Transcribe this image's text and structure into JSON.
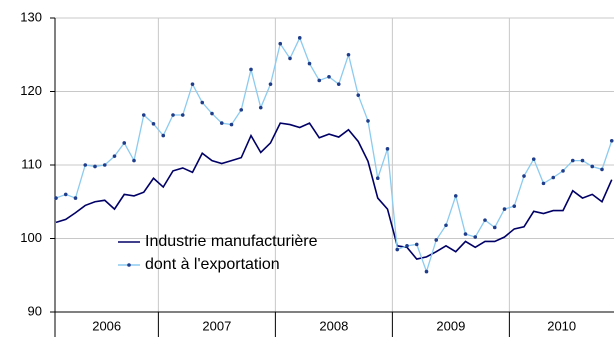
{
  "chart_data": {
    "type": "line",
    "categories": [
      "2006",
      "2006",
      "2006",
      "2006",
      "2006",
      "2006",
      "2006",
      "2006",
      "2006",
      "2006",
      "2006",
      "2007",
      "2007",
      "2007",
      "2007",
      "2007",
      "2007",
      "2007",
      "2007",
      "2007",
      "2007",
      "2007",
      "2007",
      "2008",
      "2008",
      "2008",
      "2008",
      "2008",
      "2008",
      "2008",
      "2008",
      "2008",
      "2008",
      "2008",
      "2008",
      "2009",
      "2009",
      "2009",
      "2009",
      "2009",
      "2009",
      "2009",
      "2009",
      "2009",
      "2009",
      "2009",
      "2009",
      "2010",
      "2010",
      "2010",
      "2010",
      "2010",
      "2010",
      "2010",
      "2010",
      "2010",
      "2010",
      "2010"
    ],
    "series": [
      {
        "name": "Industrie manufacturière",
        "color": "#000066",
        "markers": false,
        "values": [
          102.2,
          102.6,
          103.5,
          104.5,
          105,
          105.2,
          104,
          106,
          105.8,
          106.3,
          108.2,
          107,
          109.2,
          109.6,
          109,
          111.6,
          110.6,
          110.2,
          110.6,
          111,
          114,
          111.7,
          113,
          115.7,
          115.5,
          115.1,
          115.7,
          113.7,
          114.2,
          113.8,
          114.8,
          113.2,
          110.5,
          105.5,
          104,
          99,
          98.8,
          97.2,
          97.5,
          98.2,
          99,
          98.2,
          99.6,
          98.8,
          99.6,
          99.6,
          100.2,
          101.3,
          101.6,
          103.7,
          103.4,
          103.8,
          103.8,
          106.5,
          105.5,
          106,
          105,
          108
        ]
      },
      {
        "name": "dont à l'exportation",
        "color": "#8ccbf0",
        "markers": true,
        "marker_color": "#1f3d8a",
        "values": [
          105.5,
          106,
          105.5,
          110,
          109.8,
          110,
          111.2,
          113,
          110.6,
          116.8,
          115.6,
          114,
          116.8,
          116.8,
          121,
          118.5,
          117,
          115.7,
          115.5,
          117.5,
          123,
          117.8,
          121,
          126.5,
          124.5,
          127.3,
          123.8,
          121.5,
          122,
          121,
          125,
          119.5,
          116,
          108.2,
          112.2,
          98.5,
          99,
          99.2,
          95.5,
          99.8,
          101.8,
          105.8,
          100.6,
          100.2,
          102.5,
          101.5,
          104,
          104.4,
          108.5,
          110.8,
          107.5,
          108.3,
          109.2,
          110.6,
          110.6,
          109.8,
          109.4,
          113.3
        ]
      }
    ],
    "ylim": [
      90,
      130
    ],
    "yticks": [
      90,
      100,
      110,
      120,
      130
    ],
    "grid": true
  }
}
